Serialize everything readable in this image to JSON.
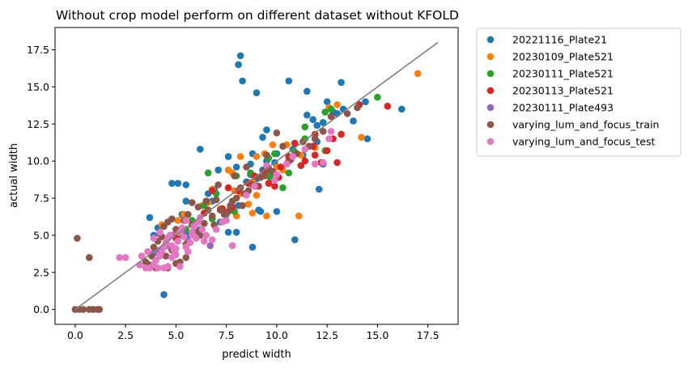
{
  "chart_data": {
    "type": "scatter",
    "title": "Without crop model perform on different dataset without KFOLD",
    "xlabel": "predict width",
    "ylabel": "actual width",
    "xlim": [
      -1,
      19
    ],
    "ylim": [
      -1,
      19
    ],
    "xticks": [
      0.0,
      2.5,
      5.0,
      7.5,
      10.0,
      12.5,
      15.0,
      17.5
    ],
    "yticks": [
      0.0,
      2.5,
      5.0,
      7.5,
      10.0,
      12.5,
      15.0,
      17.5
    ],
    "xtick_labels": [
      "0.0",
      "2.5",
      "5.0",
      "7.5",
      "10.0",
      "12.5",
      "15.0",
      "17.5"
    ],
    "ytick_labels": [
      "0.0",
      "2.5",
      "5.0",
      "7.5",
      "10.0",
      "12.5",
      "15.0",
      "17.5"
    ],
    "grid": false,
    "legend_placement": "outside-right",
    "reference_line": {
      "x": [
        0,
        18
      ],
      "y": [
        0,
        18
      ],
      "color": "#808080"
    },
    "series": [
      {
        "name": "20221116_Plate21",
        "color": "#1f77b4",
        "points": [
          [
            4.4,
            1.0
          ],
          [
            8.8,
            4.2
          ],
          [
            10.9,
            4.7
          ],
          [
            8.0,
            5.2
          ],
          [
            7.6,
            5.2
          ],
          [
            6.2,
            5.4
          ],
          [
            3.7,
            6.2
          ],
          [
            5.5,
            7.3
          ],
          [
            6.6,
            7.8
          ],
          [
            4.8,
            8.5
          ],
          [
            5.1,
            8.5
          ],
          [
            5.5,
            8.4
          ],
          [
            6.2,
            10.8
          ],
          [
            8.2,
            17.1
          ],
          [
            8.1,
            16.5
          ],
          [
            8.3,
            15.4
          ],
          [
            10.6,
            15.4
          ],
          [
            9.0,
            14.6
          ],
          [
            11.5,
            14.7
          ],
          [
            12.5,
            14.0
          ],
          [
            13.2,
            15.3
          ],
          [
            14.4,
            14.0
          ],
          [
            16.2,
            13.5
          ],
          [
            13.0,
            13.2
          ],
          [
            11.8,
            12.8
          ],
          [
            11.5,
            13.1
          ],
          [
            12.3,
            12.6
          ],
          [
            12.0,
            11.3
          ],
          [
            10.8,
            10.8
          ],
          [
            12.3,
            9.8
          ],
          [
            9.5,
            12.1
          ],
          [
            9.3,
            11.6
          ],
          [
            8.8,
            10.5
          ],
          [
            8.0,
            9.6
          ],
          [
            7.6,
            10.3
          ],
          [
            7.1,
            9.4
          ],
          [
            8.7,
            9.1
          ],
          [
            9.0,
            8.8
          ],
          [
            9.3,
            9.4
          ],
          [
            6.9,
            8.1
          ],
          [
            6.8,
            7.3
          ],
          [
            7.5,
            6.4
          ],
          [
            8.1,
            7.0
          ],
          [
            7.2,
            5.9
          ],
          [
            9.1,
            6.7
          ],
          [
            10.0,
            6.6
          ],
          [
            9.2,
            6.6
          ],
          [
            5.3,
            6.4
          ],
          [
            4.1,
            5.5
          ],
          [
            3.9,
            5.0
          ],
          [
            5.6,
            5.0
          ],
          [
            12.1,
            8.1
          ],
          [
            11.3,
            10.4
          ],
          [
            13.3,
            13.5
          ],
          [
            14.5,
            11.5
          ],
          [
            13.8,
            12.7
          ],
          [
            12.0,
            12.4
          ],
          [
            10.0,
            10.5
          ],
          [
            8.5,
            8.6
          ],
          [
            9.9,
            9.9
          ],
          [
            9.5,
            10.0
          ],
          [
            8.7,
            9.8
          ],
          [
            12.8,
            13.3
          ]
        ]
      },
      {
        "name": "20230109_Plate521",
        "color": "#ff7f0e",
        "points": [
          [
            17.0,
            15.9
          ],
          [
            14.2,
            11.6
          ],
          [
            11.1,
            6.3
          ],
          [
            12.6,
            13.6
          ],
          [
            13.0,
            13.8
          ],
          [
            11.9,
            10.9
          ],
          [
            11.2,
            10.4
          ],
          [
            10.5,
            11.1
          ],
          [
            9.8,
            11.1
          ],
          [
            9.4,
            10.5
          ],
          [
            8.2,
            10.3
          ],
          [
            7.6,
            9.4
          ],
          [
            7.8,
            9.2
          ],
          [
            8.2,
            7.8
          ],
          [
            7.9,
            8.0
          ],
          [
            6.6,
            7.2
          ],
          [
            6.3,
            7.0
          ],
          [
            5.4,
            6.4
          ],
          [
            5.1,
            6.0
          ],
          [
            4.3,
            5.7
          ],
          [
            4.9,
            5.0
          ],
          [
            6.8,
            6.2
          ],
          [
            7.5,
            6.5
          ],
          [
            8.0,
            6.3
          ],
          [
            7.7,
            6.8
          ],
          [
            8.8,
            6.5
          ],
          [
            9.5,
            6.3
          ],
          [
            10.3,
            9.4
          ],
          [
            9.6,
            9.0
          ],
          [
            10.0,
            9.6
          ],
          [
            6.8,
            8.1
          ],
          [
            8.6,
            7.1
          ],
          [
            7.2,
            6.8
          ],
          [
            9.0,
            7.7
          ],
          [
            9.0,
            10.3
          ],
          [
            8.8,
            8.6
          ]
        ]
      },
      {
        "name": "20230111_Plate521",
        "color": "#2ca02c",
        "points": [
          [
            15.0,
            14.3
          ],
          [
            12.7,
            13.5
          ],
          [
            12.4,
            13.3
          ],
          [
            11.4,
            12.3
          ],
          [
            11.4,
            11.5
          ],
          [
            12.4,
            10.7
          ],
          [
            10.9,
            10.6
          ],
          [
            9.9,
            10.5
          ],
          [
            9.6,
            10.2
          ],
          [
            9.6,
            9.4
          ],
          [
            9.4,
            9.1
          ],
          [
            8.7,
            9.2
          ],
          [
            8.0,
            9.0
          ],
          [
            6.6,
            9.2
          ],
          [
            7.0,
            7.8
          ],
          [
            6.4,
            7.0
          ],
          [
            6.8,
            6.1
          ],
          [
            5.8,
            6.0
          ],
          [
            5.5,
            5.4
          ],
          [
            7.9,
            6.6
          ],
          [
            9.7,
            8.8
          ],
          [
            10.3,
            8.2
          ],
          [
            10.6,
            9.2
          ],
          [
            9.7,
            9.1
          ]
        ]
      },
      {
        "name": "20230113_Plate521",
        "color": "#d62728",
        "points": [
          [
            15.5,
            13.7
          ],
          [
            14.1,
            13.8
          ],
          [
            13.2,
            11.8
          ],
          [
            12.8,
            11.5
          ],
          [
            13.0,
            9.9
          ],
          [
            12.5,
            10.7
          ],
          [
            11.9,
            11.8
          ],
          [
            11.9,
            10.4
          ],
          [
            11.4,
            10.0
          ],
          [
            11.2,
            9.7
          ],
          [
            10.9,
            11.2
          ],
          [
            10.6,
            10.0
          ],
          [
            10.2,
            9.6
          ],
          [
            10.1,
            8.9
          ],
          [
            9.6,
            8.5
          ],
          [
            9.4,
            9.3
          ],
          [
            9.1,
            8.3
          ],
          [
            8.6,
            8.5
          ],
          [
            8.1,
            8.0
          ],
          [
            7.6,
            8.2
          ],
          [
            7.3,
            6.8
          ],
          [
            6.8,
            8.0
          ],
          [
            6.5,
            7.3
          ],
          [
            6.4,
            6.5
          ],
          [
            6.1,
            5.9
          ],
          [
            5.8,
            5.7
          ],
          [
            5.3,
            5.2
          ],
          [
            5.0,
            4.8
          ],
          [
            7.8,
            6.9
          ],
          [
            8.9,
            9.0
          ],
          [
            9.9,
            8.3
          ],
          [
            10.6,
            10.3
          ],
          [
            12.2,
            9.9
          ],
          [
            11.8,
            11.0
          ]
        ]
      },
      {
        "name": "20230111_Plate493",
        "color": "#9467bd",
        "points": [
          [
            6.7,
            4.3
          ],
          [
            5.6,
            4.6
          ],
          [
            5.1,
            4.6
          ],
          [
            4.6,
            4.3
          ],
          [
            4.2,
            4.0
          ],
          [
            3.9,
            3.8
          ],
          [
            4.8,
            5.0
          ],
          [
            5.3,
            5.3
          ]
        ]
      },
      {
        "name": "varying_lum_and_focus_train",
        "color": "#8c564b",
        "points": [
          [
            0.0,
            0.0
          ],
          [
            0.2,
            0.0
          ],
          [
            0.4,
            0.0
          ],
          [
            0.7,
            0.0
          ],
          [
            0.9,
            0.0
          ],
          [
            1.1,
            0.0
          ],
          [
            1.2,
            0.0
          ],
          [
            0.1,
            4.8
          ],
          [
            0.7,
            3.5
          ],
          [
            4.0,
            2.8
          ],
          [
            4.6,
            2.8
          ],
          [
            5.0,
            3.1
          ],
          [
            5.2,
            3.2
          ],
          [
            5.5,
            3.5
          ],
          [
            3.5,
            3.2
          ],
          [
            3.8,
            3.6
          ],
          [
            3.9,
            4.2
          ],
          [
            4.1,
            4.6
          ],
          [
            4.2,
            5.1
          ],
          [
            4.4,
            5.6
          ],
          [
            4.6,
            5.9
          ],
          [
            4.8,
            6.1
          ],
          [
            5.0,
            5.4
          ],
          [
            5.3,
            5.0
          ],
          [
            5.4,
            6.0
          ],
          [
            5.6,
            6.4
          ],
          [
            5.8,
            7.2
          ],
          [
            6.0,
            5.3
          ],
          [
            6.2,
            5.0
          ],
          [
            6.4,
            5.8
          ],
          [
            6.6,
            6.7
          ],
          [
            6.8,
            6.3
          ],
          [
            7.0,
            7.4
          ],
          [
            7.2,
            6.7
          ],
          [
            7.4,
            6.4
          ],
          [
            7.6,
            6.6
          ],
          [
            7.8,
            7.3
          ],
          [
            8.0,
            7.5
          ],
          [
            8.2,
            8.2
          ],
          [
            8.4,
            7.8
          ],
          [
            8.6,
            8.0
          ],
          [
            8.8,
            8.4
          ],
          [
            9.0,
            8.3
          ],
          [
            9.2,
            8.9
          ],
          [
            9.4,
            9.0
          ],
          [
            9.6,
            9.5
          ],
          [
            9.8,
            9.3
          ],
          [
            10.0,
            11.9
          ],
          [
            10.3,
            11.0
          ],
          [
            10.5,
            9.8
          ],
          [
            10.7,
            10.1
          ],
          [
            11.0,
            10.5
          ],
          [
            11.3,
            11.3
          ],
          [
            11.6,
            11.0
          ],
          [
            11.9,
            11.5
          ],
          [
            12.3,
            12.0
          ],
          [
            12.7,
            13.0
          ],
          [
            13.5,
            13.2
          ],
          [
            14.0,
            13.6
          ],
          [
            7.1,
            8.4
          ],
          [
            7.9,
            9.0
          ],
          [
            8.5,
            9.6
          ],
          [
            9.5,
            10.4
          ],
          [
            6.9,
            5.7
          ],
          [
            6.5,
            7.3
          ],
          [
            5.5,
            4.4
          ],
          [
            4.8,
            4.0
          ],
          [
            4.5,
            3.6
          ],
          [
            4.3,
            4.9
          ],
          [
            3.7,
            3.0
          ],
          [
            6.1,
            6.9
          ],
          [
            5.9,
            5.7
          ],
          [
            7.7,
            7.0
          ],
          [
            8.3,
            7.0
          ]
        ]
      },
      {
        "name": "varying_lum_and_focus_test",
        "color": "#e377c2",
        "points": [
          [
            2.2,
            3.5
          ],
          [
            2.5,
            3.5
          ],
          [
            3.2,
            3.0
          ],
          [
            3.3,
            3.6
          ],
          [
            3.5,
            2.8
          ],
          [
            3.7,
            2.8
          ],
          [
            3.9,
            3.0
          ],
          [
            4.0,
            3.3
          ],
          [
            4.2,
            3.6
          ],
          [
            4.3,
            3.9
          ],
          [
            4.4,
            4.2
          ],
          [
            4.5,
            4.5
          ],
          [
            4.6,
            4.8
          ],
          [
            4.7,
            5.0
          ],
          [
            4.8,
            4.3
          ],
          [
            4.9,
            4.0
          ],
          [
            5.0,
            3.7
          ],
          [
            5.1,
            4.6
          ],
          [
            5.2,
            5.2
          ],
          [
            5.3,
            5.5
          ],
          [
            5.4,
            4.9
          ],
          [
            5.5,
            4.2
          ],
          [
            5.6,
            3.9
          ],
          [
            5.7,
            4.5
          ],
          [
            5.8,
            5.2
          ],
          [
            5.9,
            5.6
          ],
          [
            6.0,
            4.8
          ],
          [
            6.1,
            5.9
          ],
          [
            6.3,
            5.4
          ],
          [
            6.5,
            5.0
          ],
          [
            6.8,
            4.7
          ],
          [
            7.0,
            5.4
          ],
          [
            7.3,
            5.9
          ],
          [
            7.5,
            6.0
          ],
          [
            7.8,
            4.3
          ],
          [
            4.1,
            2.8
          ],
          [
            4.4,
            2.8
          ],
          [
            4.6,
            2.9
          ],
          [
            5.2,
            2.9
          ],
          [
            5.8,
            5.0
          ],
          [
            6.4,
            4.6
          ],
          [
            9.5,
            9.7
          ],
          [
            9.9,
            8.7
          ],
          [
            10.0,
            9.1
          ],
          [
            10.5,
            9.8
          ],
          [
            10.8,
            10.3
          ],
          [
            11.9,
            9.8
          ],
          [
            12.3,
            9.9
          ],
          [
            12.6,
            11.5
          ],
          [
            12.7,
            12.0
          ],
          [
            11.4,
            10.8
          ],
          [
            8.9,
            8.3
          ],
          [
            8.5,
            7.7
          ],
          [
            3.9,
            4.8
          ],
          [
            4.2,
            5.2
          ],
          [
            5.5,
            6.0
          ],
          [
            6.2,
            6.2
          ],
          [
            4.8,
            3.5
          ],
          [
            5.0,
            4.1
          ],
          [
            3.6,
            3.9
          ]
        ]
      }
    ]
  }
}
